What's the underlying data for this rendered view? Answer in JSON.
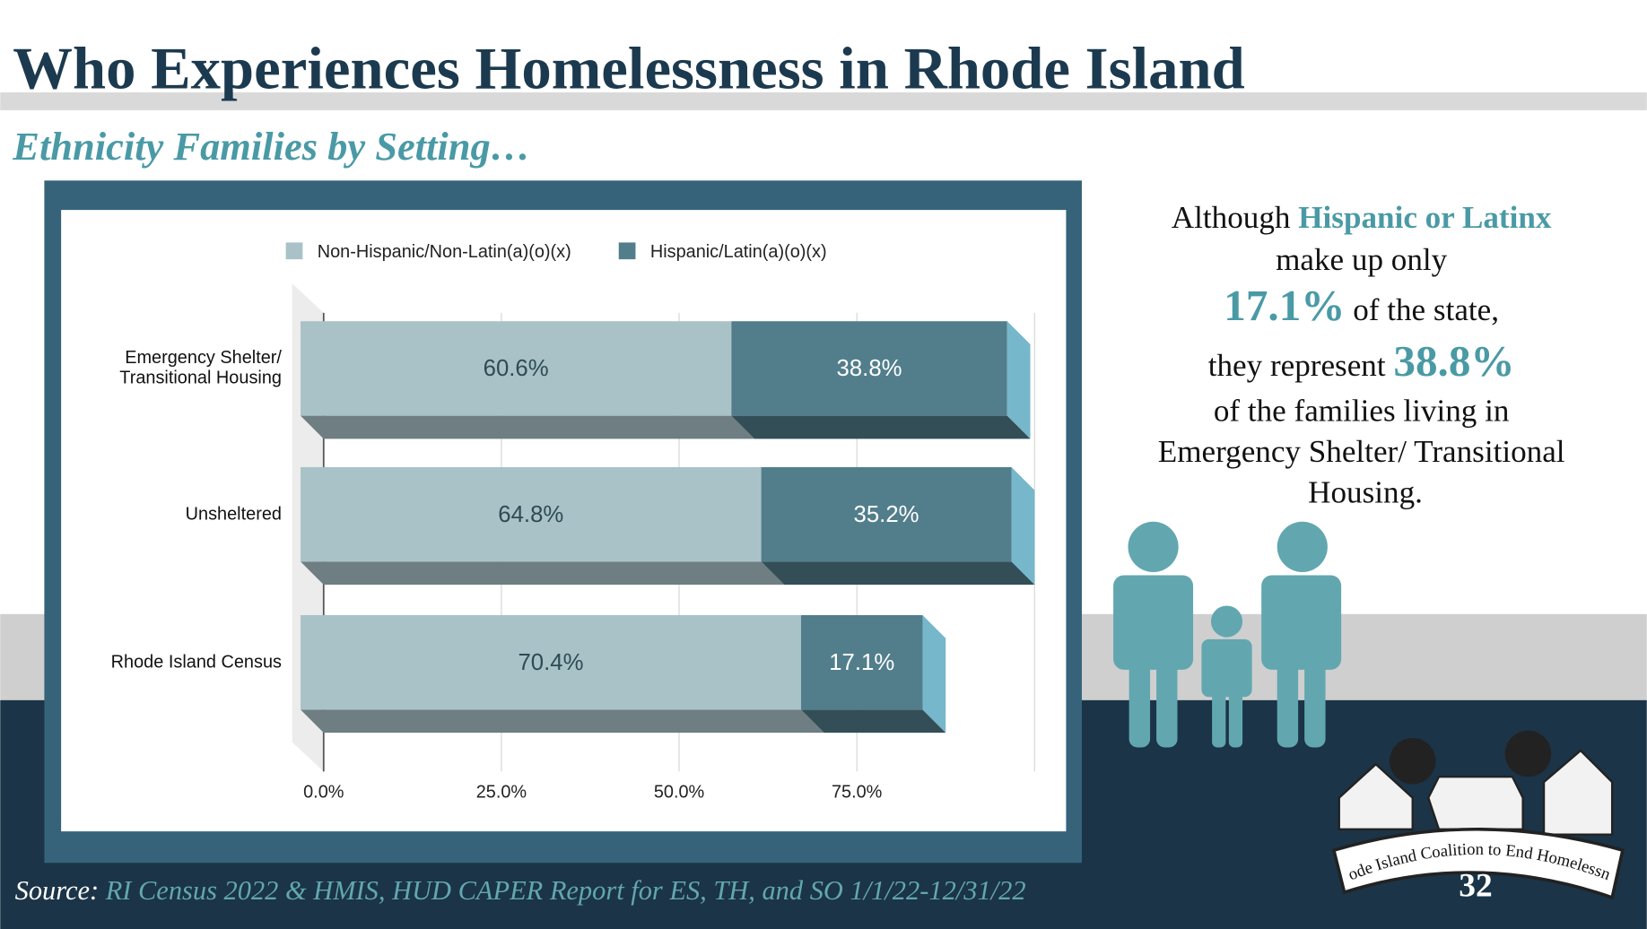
{
  "chart_data": {
    "type": "stacked-bar-3d",
    "title": "Who Experiences Homelessness in Rhode Island",
    "subtitle": "Ethnicity Families by Setting…",
    "orientation": "horizontal",
    "categories": [
      "Emergency Shelter/ Transitional Housing",
      "Unsheltered",
      "Rhode Island Census"
    ],
    "series": [
      {
        "name": "Non-Hispanic/Non-Latin(a)(o)(x)",
        "color": "#a9c2c8",
        "values": [
          60.6,
          64.8,
          70.4
        ],
        "value_labels": [
          "60.6%",
          "64.8%",
          "70.4%"
        ]
      },
      {
        "name": "Hispanic/Latin(a)(o)(x)",
        "color": "#527e8c",
        "values": [
          38.8,
          35.2,
          17.1
        ],
        "value_labels": [
          "38.8%",
          "35.2%",
          "17.1%"
        ]
      }
    ],
    "xlim": [
      0,
      100
    ],
    "xticks": [
      {
        "value": 0,
        "label": "0.0%"
      },
      {
        "value": 25,
        "label": "25.0%"
      },
      {
        "value": 50,
        "label": "50.0%"
      },
      {
        "value": 75,
        "label": "75.0%"
      }
    ],
    "grid": true,
    "legend": "top"
  },
  "slide": {
    "callout": [
      "Although",
      "Hispanic or Latinx",
      "make up only",
      "17.1%",
      "of the state,",
      "they represent",
      "38.8%",
      "of the families living in",
      "Emergency Shelter/ Transitional",
      "Housing."
    ],
    "source_label": "Source:",
    "source": "RI Census 2022 & HMIS, HUD CAPER Report for ES, TH, and SO 1/1/22-12/31/22",
    "logo_text": "Rhode Island Coalition to End Homelessness",
    "page_number": "32"
  }
}
